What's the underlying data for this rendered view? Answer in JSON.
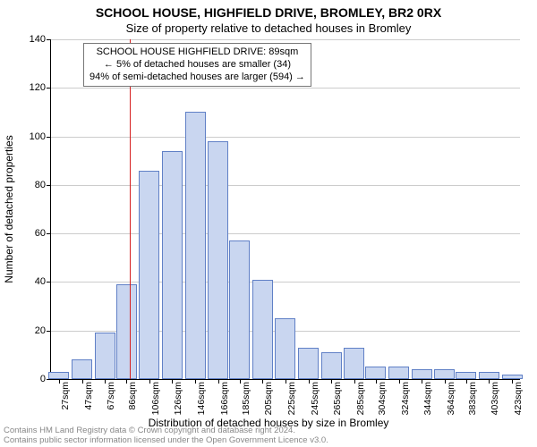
{
  "title_main": "SCHOOL HOUSE, HIGHFIELD DRIVE, BROMLEY, BR2 0RX",
  "title_sub": "Size of property relative to detached houses in Bromley",
  "y_axis_label": "Number of detached properties",
  "x_axis_label": "Distribution of detached houses by size in Bromley",
  "footer_line1": "Contains HM Land Registry data © Crown copyright and database right 2024.",
  "footer_line2": "Contains public sector information licensed under the Open Government Licence v3.0.",
  "annotation": {
    "line1": "SCHOOL HOUSE HIGHFIELD DRIVE: 89sqm",
    "line2": "← 5% of detached houses are smaller (34)",
    "line3": "94% of semi-detached houses are larger (594) →"
  },
  "chart": {
    "type": "histogram",
    "background_color": "#ffffff",
    "grid_color": "#cccccc",
    "axis_color": "#000000",
    "bar_fill": "#c9d6f0",
    "bar_stroke": "#6080c6",
    "ref_line_color": "#d62020",
    "ref_line_x": 89,
    "x_range": [
      20,
      430
    ],
    "y_range": [
      0,
      140
    ],
    "y_ticks": [
      0,
      20,
      40,
      60,
      80,
      100,
      120,
      140
    ],
    "x_ticks": [
      {
        "v": 27,
        "label": "27sqm"
      },
      {
        "v": 47,
        "label": "47sqm"
      },
      {
        "v": 67,
        "label": "67sqm"
      },
      {
        "v": 86,
        "label": "86sqm"
      },
      {
        "v": 106,
        "label": "106sqm"
      },
      {
        "v": 126,
        "label": "126sqm"
      },
      {
        "v": 146,
        "label": "146sqm"
      },
      {
        "v": 166,
        "label": "166sqm"
      },
      {
        "v": 185,
        "label": "185sqm"
      },
      {
        "v": 205,
        "label": "205sqm"
      },
      {
        "v": 225,
        "label": "225sqm"
      },
      {
        "v": 245,
        "label": "245sqm"
      },
      {
        "v": 265,
        "label": "265sqm"
      },
      {
        "v": 285,
        "label": "285sqm"
      },
      {
        "v": 304,
        "label": "304sqm"
      },
      {
        "v": 324,
        "label": "324sqm"
      },
      {
        "v": 344,
        "label": "344sqm"
      },
      {
        "v": 364,
        "label": "364sqm"
      },
      {
        "v": 383,
        "label": "383sqm"
      },
      {
        "v": 403,
        "label": "403sqm"
      },
      {
        "v": 423,
        "label": "423sqm"
      }
    ],
    "bars": [
      {
        "x": 27,
        "h": 3
      },
      {
        "x": 47,
        "h": 8
      },
      {
        "x": 67,
        "h": 19
      },
      {
        "x": 86,
        "h": 39
      },
      {
        "x": 106,
        "h": 86
      },
      {
        "x": 126,
        "h": 94
      },
      {
        "x": 146,
        "h": 110
      },
      {
        "x": 166,
        "h": 98
      },
      {
        "x": 185,
        "h": 57
      },
      {
        "x": 205,
        "h": 41
      },
      {
        "x": 225,
        "h": 25
      },
      {
        "x": 245,
        "h": 13
      },
      {
        "x": 265,
        "h": 11
      },
      {
        "x": 285,
        "h": 13
      },
      {
        "x": 304,
        "h": 5
      },
      {
        "x": 324,
        "h": 5
      },
      {
        "x": 344,
        "h": 4
      },
      {
        "x": 364,
        "h": 4
      },
      {
        "x": 383,
        "h": 3
      },
      {
        "x": 403,
        "h": 3
      },
      {
        "x": 423,
        "h": 2
      }
    ],
    "bar_width_data": 18
  }
}
